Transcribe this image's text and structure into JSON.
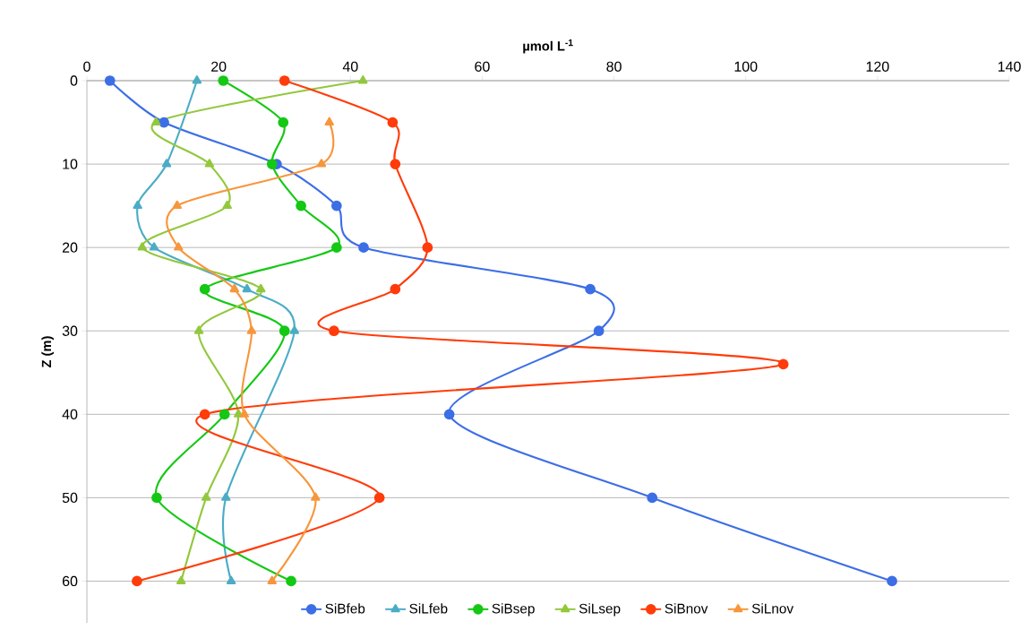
{
  "chart_data": {
    "type": "line",
    "xlabel": "µmol L$^{-1}$",
    "ylabel": "Z (m)",
    "xlim": [
      0,
      140
    ],
    "xticks": [
      0,
      20,
      40,
      60,
      80,
      100,
      120,
      140
    ],
    "ylim": [
      65,
      0
    ],
    "yticks": [
      0,
      10,
      20,
      30,
      40,
      50,
      60
    ],
    "grid": "y",
    "legend": "bottom",
    "series": [
      {
        "name": "SiBfeb",
        "color": "#3c6ee6",
        "marker": "circle",
        "x": [
          3.5,
          11.7,
          28.8,
          37.9,
          42.0,
          76.4,
          77.7,
          55.0,
          85.8,
          122.2
        ],
        "values": [
          0,
          5,
          10,
          15,
          20,
          25,
          30,
          40,
          50,
          60
        ]
      },
      {
        "name": "SiLfeb",
        "color": "#4bacc6",
        "marker": "triangle",
        "x": [
          16.7,
          12.1,
          7.7,
          10.2,
          24.3,
          31.5,
          21.1,
          21.9
        ],
        "values": [
          0,
          10,
          15,
          20,
          25,
          30,
          50,
          60
        ]
      },
      {
        "name": "SiBsep",
        "color": "#14c814",
        "marker": "circle",
        "x": [
          20.7,
          29.8,
          28.1,
          32.5,
          37.9,
          17.9,
          30.0,
          20.9,
          10.6,
          31.0
        ],
        "values": [
          0,
          5,
          10,
          15,
          20,
          25,
          30,
          40,
          50,
          60
        ]
      },
      {
        "name": "SiLsep",
        "color": "#92c83c",
        "marker": "triangle",
        "x": [
          41.9,
          10.5,
          18.6,
          21.3,
          8.4,
          26.4,
          17.0,
          23.0,
          18.1,
          14.3
        ],
        "values": [
          0,
          5,
          10,
          15,
          20,
          25,
          30,
          40,
          50,
          60
        ]
      },
      {
        "name": "SiBnov",
        "color": "#ff3c0a",
        "marker": "circle",
        "x": [
          30.0,
          46.4,
          46.8,
          51.7,
          46.8,
          37.5,
          105.7,
          17.9,
          44.4,
          7.6
        ],
        "values": [
          0,
          5,
          10,
          20,
          25,
          30,
          34,
          40,
          50,
          60
        ]
      },
      {
        "name": "SiLnov",
        "color": "#f7963c",
        "marker": "triangle",
        "x": [
          36.8,
          35.6,
          13.7,
          13.9,
          22.4,
          25.0,
          23.9,
          34.7,
          28.1
        ],
        "values": [
          5,
          10,
          15,
          20,
          25,
          30,
          40,
          50,
          60
        ]
      }
    ]
  }
}
